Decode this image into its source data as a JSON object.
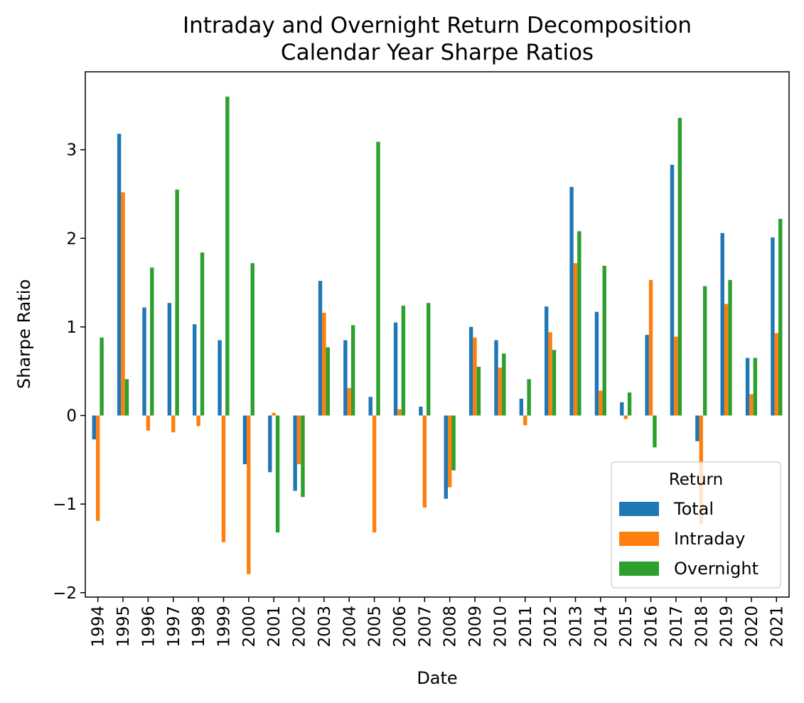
{
  "chart_data": {
    "type": "bar",
    "title": "Intraday and Overnight Return Decomposition",
    "subtitle": "Calendar Year Sharpe Ratios",
    "xlabel": "Date",
    "ylabel": "Sharpe Ratio",
    "ylim": [
      -2.05,
      3.88
    ],
    "yticks": [
      -2,
      -1,
      0,
      1,
      2,
      3
    ],
    "ytick_labels": [
      "−2",
      "−1",
      "0",
      "1",
      "2",
      "3"
    ],
    "grid": false,
    "categories": [
      "1994",
      "1995",
      "1996",
      "1997",
      "1998",
      "1999",
      "2000",
      "2001",
      "2002",
      "2003",
      "2004",
      "2005",
      "2006",
      "2007",
      "2008",
      "2009",
      "2010",
      "2011",
      "2012",
      "2013",
      "2014",
      "2015",
      "2016",
      "2017",
      "2018",
      "2019",
      "2020",
      "2021"
    ],
    "series": [
      {
        "name": "Total",
        "color": "#1f77b4",
        "values": [
          -0.27,
          3.18,
          1.22,
          1.27,
          1.03,
          0.85,
          -0.55,
          -0.64,
          -0.85,
          1.52,
          0.85,
          0.21,
          1.05,
          0.1,
          -0.94,
          1.0,
          0.85,
          0.19,
          1.23,
          2.58,
          1.17,
          0.15,
          0.91,
          2.83,
          -0.29,
          2.06,
          0.65,
          2.01
        ]
      },
      {
        "name": "Intraday",
        "color": "#ff7f0e",
        "values": [
          -1.19,
          2.52,
          -0.17,
          -0.19,
          -0.12,
          -1.43,
          -1.79,
          0.03,
          -0.55,
          1.16,
          0.31,
          -1.32,
          0.07,
          -1.04,
          -0.81,
          0.88,
          0.54,
          -0.11,
          0.94,
          1.72,
          0.28,
          -0.04,
          1.53,
          0.89,
          -1.23,
          1.26,
          0.24,
          0.93
        ]
      },
      {
        "name": "Overnight",
        "color": "#2ca02c",
        "values": [
          0.88,
          0.41,
          1.67,
          2.55,
          1.84,
          3.6,
          1.72,
          -1.32,
          -0.92,
          0.77,
          1.02,
          3.09,
          1.24,
          1.27,
          -0.62,
          0.55,
          0.7,
          0.41,
          0.74,
          2.08,
          1.69,
          0.26,
          -0.36,
          3.36,
          1.46,
          1.53,
          0.65,
          2.22
        ]
      }
    ],
    "legend": {
      "title": "Return",
      "position": "lower-right"
    }
  }
}
